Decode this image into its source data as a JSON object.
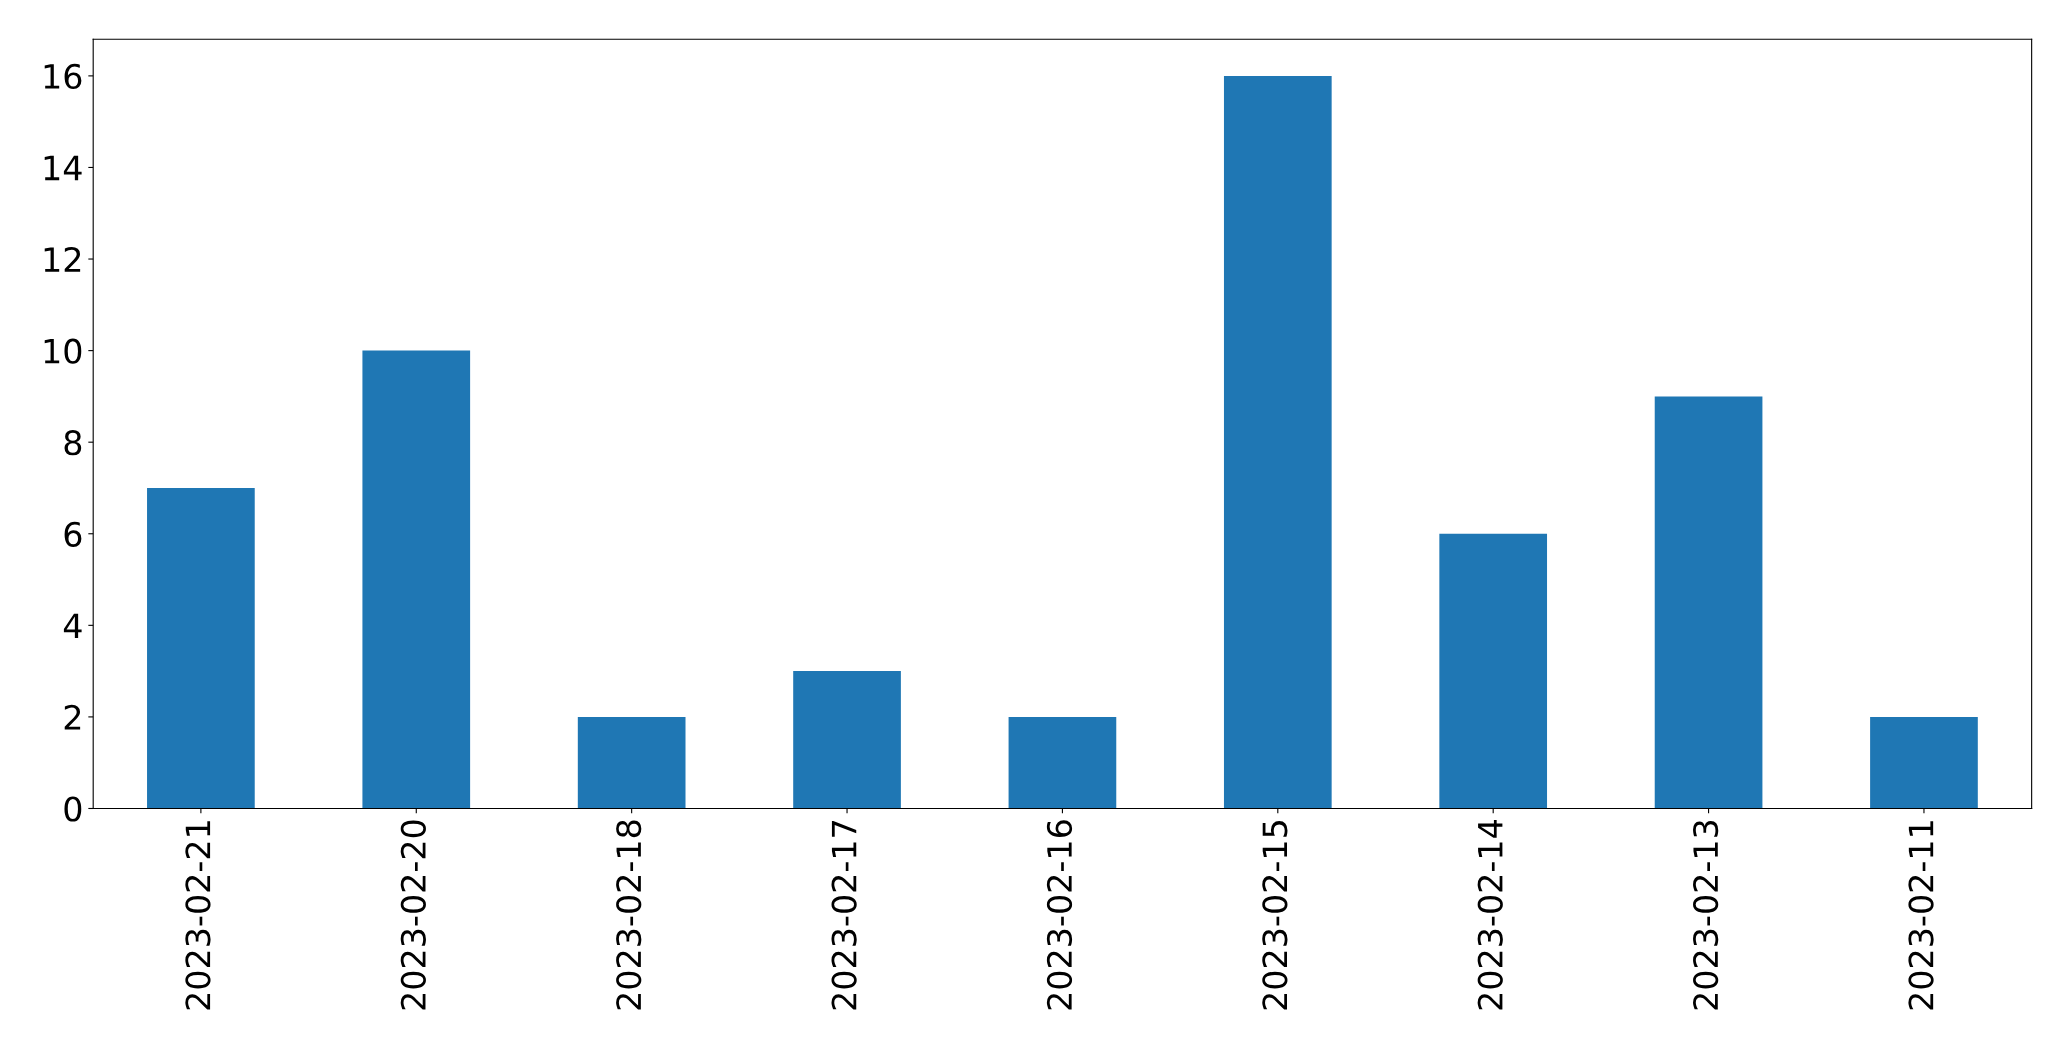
{
  "chart_data": {
    "type": "bar",
    "categories": [
      "2023-02-21",
      "2023-02-20",
      "2023-02-18",
      "2023-02-17",
      "2023-02-16",
      "2023-02-15",
      "2023-02-14",
      "2023-02-13",
      "2023-02-11"
    ],
    "values": [
      7,
      10,
      2,
      3,
      2,
      16,
      6,
      9,
      2
    ],
    "color": "#1f77b4",
    "ylim": [
      0,
      16.8
    ],
    "yticks": [
      0,
      2,
      4,
      6,
      8,
      10,
      12,
      14,
      16
    ],
    "grid": false,
    "legend": false
  }
}
